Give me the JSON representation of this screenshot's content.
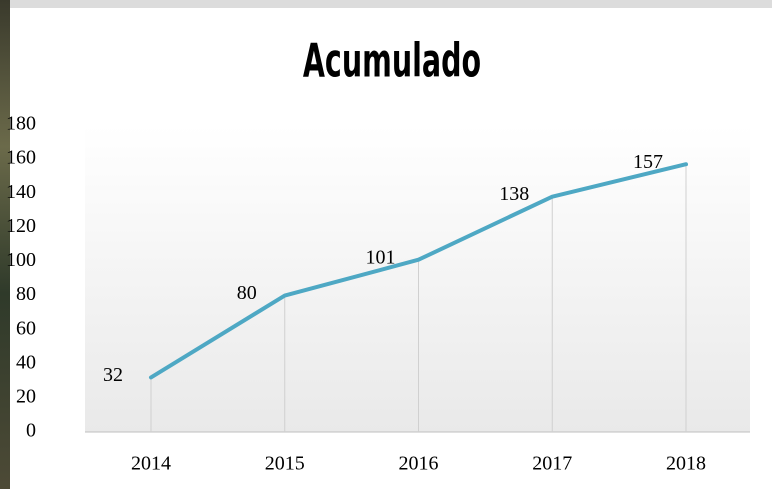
{
  "chart_data": {
    "type": "line",
    "title": "Acumulado",
    "categories": [
      "2014",
      "2015",
      "2016",
      "2017",
      "2018"
    ],
    "values": [
      32,
      80,
      101,
      138,
      157
    ],
    "color": "#4ea8c4",
    "ylim": [
      0,
      180
    ],
    "yticks": [
      0,
      20,
      40,
      60,
      80,
      100,
      120,
      140,
      160,
      180
    ],
    "grid": false,
    "drop_lines": true,
    "data_labels": true
  }
}
